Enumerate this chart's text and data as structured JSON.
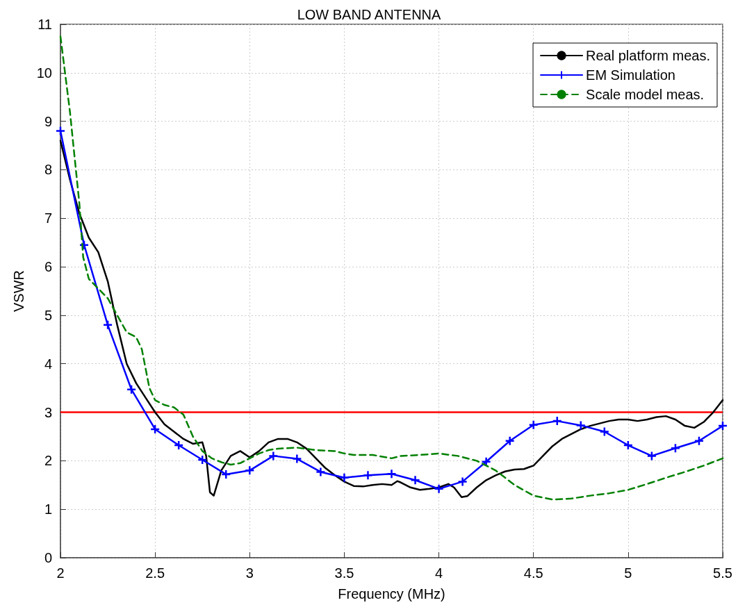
{
  "chart_data": {
    "type": "line",
    "title": "LOW BAND ANTENNA",
    "xlabel": "Frequency (MHz)",
    "ylabel": "VSWR",
    "xlim": [
      2,
      5.5
    ],
    "xticks": [
      2,
      2.5,
      3,
      3.5,
      4,
      4.5,
      5,
      5.5
    ],
    "ylim": [
      0,
      11
    ],
    "yticks": [
      0,
      1,
      2,
      3,
      4,
      5,
      6,
      7,
      8,
      9,
      10,
      11
    ],
    "grid": true,
    "legend": "top right",
    "ref_lines": [
      {
        "axis": "y",
        "value": 3,
        "color": "#ff0000",
        "line_style": "solid"
      }
    ],
    "series": [
      {
        "name": "Real platform meas.",
        "color": "#000000",
        "marker": "none",
        "line_style": "solid",
        "x": [
          2,
          2.05,
          2.1,
          2.15,
          2.2,
          2.25,
          2.3,
          2.35,
          2.4,
          2.45,
          2.5,
          2.55,
          2.6,
          2.65,
          2.7,
          2.75,
          2.77,
          2.79,
          2.81,
          2.85,
          2.9,
          2.95,
          3.0,
          3.05,
          3.1,
          3.15,
          3.2,
          3.25,
          3.3,
          3.35,
          3.4,
          3.45,
          3.5,
          3.55,
          3.6,
          3.65,
          3.7,
          3.75,
          3.78,
          3.8,
          3.85,
          3.9,
          3.95,
          4.0,
          4.05,
          4.08,
          4.12,
          4.15,
          4.2,
          4.25,
          4.3,
          4.35,
          4.4,
          4.45,
          4.5,
          4.55,
          4.6,
          4.65,
          4.7,
          4.75,
          4.8,
          4.85,
          4.9,
          4.95,
          5.0,
          5.05,
          5.1,
          5.15,
          5.2,
          5.25,
          5.3,
          5.35,
          5.4,
          5.45,
          5.5
        ],
        "values": [
          8.6,
          7.8,
          7.1,
          6.6,
          6.3,
          5.7,
          4.8,
          4.0,
          3.6,
          3.3,
          3.0,
          2.75,
          2.6,
          2.45,
          2.35,
          2.38,
          2.1,
          1.35,
          1.28,
          1.8,
          2.1,
          2.2,
          2.07,
          2.2,
          2.38,
          2.45,
          2.45,
          2.38,
          2.25,
          2.05,
          1.85,
          1.7,
          1.57,
          1.48,
          1.47,
          1.5,
          1.52,
          1.5,
          1.58,
          1.55,
          1.45,
          1.4,
          1.42,
          1.45,
          1.52,
          1.45,
          1.25,
          1.27,
          1.45,
          1.6,
          1.7,
          1.78,
          1.82,
          1.83,
          1.9,
          2.1,
          2.3,
          2.45,
          2.55,
          2.65,
          2.72,
          2.77,
          2.82,
          2.85,
          2.85,
          2.82,
          2.85,
          2.9,
          2.92,
          2.85,
          2.72,
          2.68,
          2.8,
          3.0,
          3.25
        ]
      },
      {
        "name": "EM Simulation",
        "color": "#0000ff",
        "marker": "cross",
        "line_style": "solid",
        "x": [
          2,
          2.125,
          2.25,
          2.375,
          2.5,
          2.625,
          2.75,
          2.875,
          3,
          3.125,
          3.25,
          3.375,
          3.5,
          3.625,
          3.75,
          3.875,
          4,
          4.125,
          4.25,
          4.375,
          4.5,
          4.625,
          4.75,
          4.875,
          5,
          5.125,
          5.25,
          5.375,
          5.5
        ],
        "values": [
          8.8,
          6.45,
          4.8,
          3.47,
          2.65,
          2.32,
          2.02,
          1.72,
          1.8,
          2.1,
          2.04,
          1.77,
          1.65,
          1.7,
          1.73,
          1.6,
          1.42,
          1.57,
          1.98,
          2.41,
          2.74,
          2.82,
          2.73,
          2.6,
          2.32,
          2.1,
          2.26,
          2.41,
          2.72
        ]
      },
      {
        "name": "Scale model meas.",
        "color": "#008000",
        "marker": "none",
        "line_style": "dashed",
        "x": [
          2,
          2.05,
          2.1,
          2.12,
          2.15,
          2.2,
          2.25,
          2.3,
          2.35,
          2.4,
          2.43,
          2.47,
          2.5,
          2.55,
          2.6,
          2.65,
          2.7,
          2.75,
          2.8,
          2.85,
          2.9,
          2.95,
          3.0,
          3.05,
          3.1,
          3.15,
          3.25,
          3.35,
          3.45,
          3.5,
          3.55,
          3.65,
          3.75,
          3.8,
          3.9,
          4.0,
          4.1,
          4.2,
          4.3,
          4.4,
          4.5,
          4.6,
          4.7,
          4.8,
          4.9,
          5.0,
          5.1,
          5.2,
          5.3,
          5.4,
          5.5
        ],
        "values": [
          10.75,
          9.2,
          7.3,
          6.2,
          5.75,
          5.55,
          5.35,
          5.0,
          4.65,
          4.55,
          4.3,
          3.5,
          3.25,
          3.15,
          3.1,
          2.95,
          2.5,
          2.2,
          2.05,
          1.97,
          1.92,
          1.95,
          2.05,
          2.15,
          2.22,
          2.25,
          2.27,
          2.22,
          2.2,
          2.15,
          2.12,
          2.12,
          2.05,
          2.1,
          2.12,
          2.15,
          2.1,
          2.0,
          1.8,
          1.5,
          1.28,
          1.2,
          1.22,
          1.28,
          1.33,
          1.4,
          1.52,
          1.65,
          1.77,
          1.9,
          2.05
        ]
      }
    ]
  }
}
